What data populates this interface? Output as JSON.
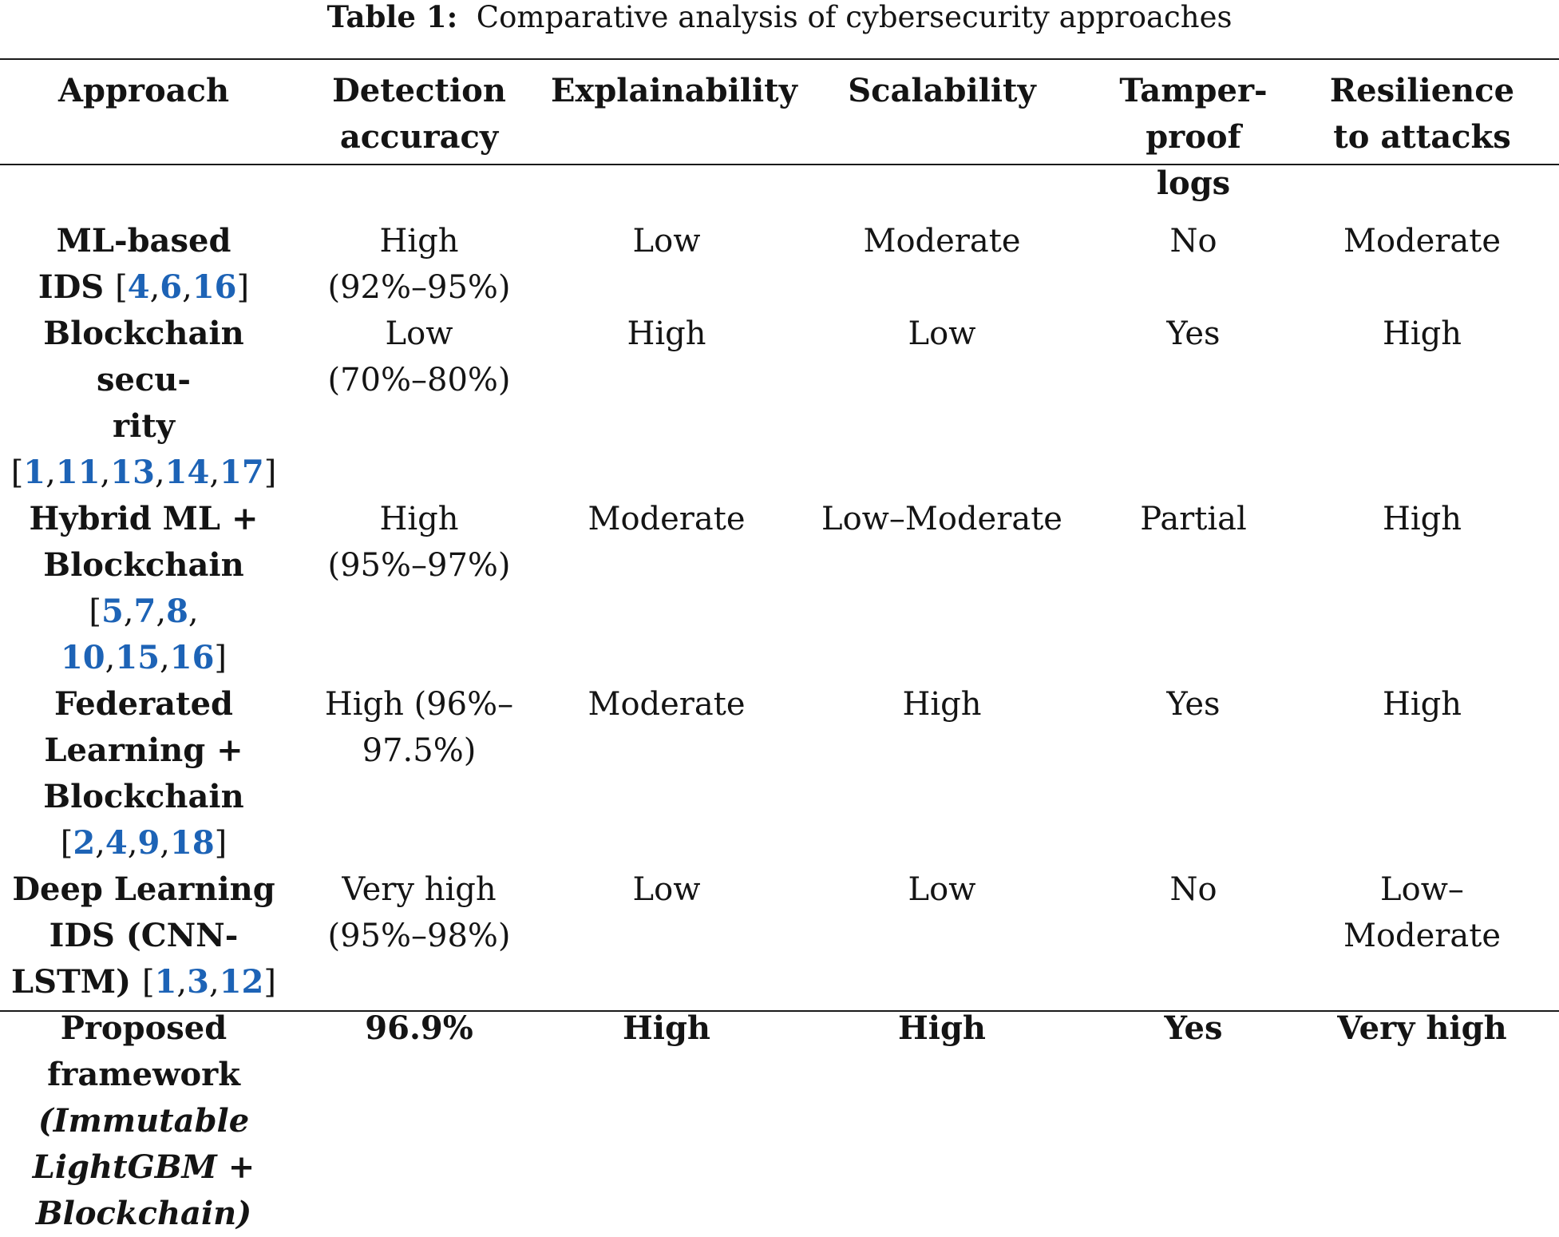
{
  "caption": {
    "label": "Table 1:",
    "title": "Comparative analysis of cybersecurity approaches"
  },
  "table": {
    "headers": {
      "approach": "Approach",
      "detection_l1": "Detection",
      "detection_l2": "accuracy",
      "explainability": "Explainability",
      "scalability": "Scalability",
      "tamper_l1": "Tamper-proof",
      "tamper_l2": "logs",
      "resilience_l1": "Resilience",
      "resilience_l2": "to attacks"
    },
    "rows": [
      {
        "approach_l1": "ML-based",
        "approach_l2": "IDS",
        "refs": [
          "4",
          "6",
          "16"
        ],
        "detection_l1": "High",
        "detection_l2": "(92%–95%)",
        "explainability": "Low",
        "scalability": "Moderate",
        "tamper": "No",
        "resilience": "Moderate"
      },
      {
        "approach_l1": "Blockchain secu-",
        "approach_l2": "rity",
        "refs": [
          "1",
          "11",
          "13",
          "14",
          "17"
        ],
        "detection_l1": "Low",
        "detection_l2": "(70%–80%)",
        "explainability": "High",
        "scalability": "Low",
        "tamper": "Yes",
        "resilience": "High"
      },
      {
        "approach_l1": "Hybrid ML +",
        "approach_l2": "Blockchain",
        "refs": [
          "5",
          "7",
          "8",
          "10",
          "15",
          "16"
        ],
        "detection_l1": "High",
        "detection_l2": "(95%–97%)",
        "explainability": "Moderate",
        "scalability": "Low–Moderate",
        "tamper": "Partial",
        "resilience": "High"
      },
      {
        "approach_l1": "Federated",
        "approach_l2": "Learning +",
        "approach_l3": "Blockchain",
        "refs": [
          "2",
          "4",
          "9",
          "18"
        ],
        "detection_l1": "High (96%–",
        "detection_l2": "97.5%)",
        "explainability": "Moderate",
        "scalability": "High",
        "tamper": "Yes",
        "resilience": "High"
      },
      {
        "approach_l1": "Deep Learning",
        "approach_l2": "IDS (CNN-",
        "approach_l3": "LSTM)",
        "refs": [
          "1",
          "3",
          "12"
        ],
        "detection_l1": "Very high",
        "detection_l2": "(95%–98%)",
        "explainability": "Low",
        "scalability": "Low",
        "tamper": "No",
        "resilience_l1": "Low–",
        "resilience_l2": "Moderate"
      },
      {
        "approach_l1": "Proposed",
        "approach_l2": "framework",
        "approach_it1": "(Immutable",
        "approach_it2": "LightGBM",
        "approach_it2_plus": " +",
        "approach_it3": "Blockchain)",
        "detection": "96.9%",
        "explainability": "High",
        "scalability": "High",
        "tamper": "Yes",
        "resilience": "Very high"
      }
    ]
  }
}
